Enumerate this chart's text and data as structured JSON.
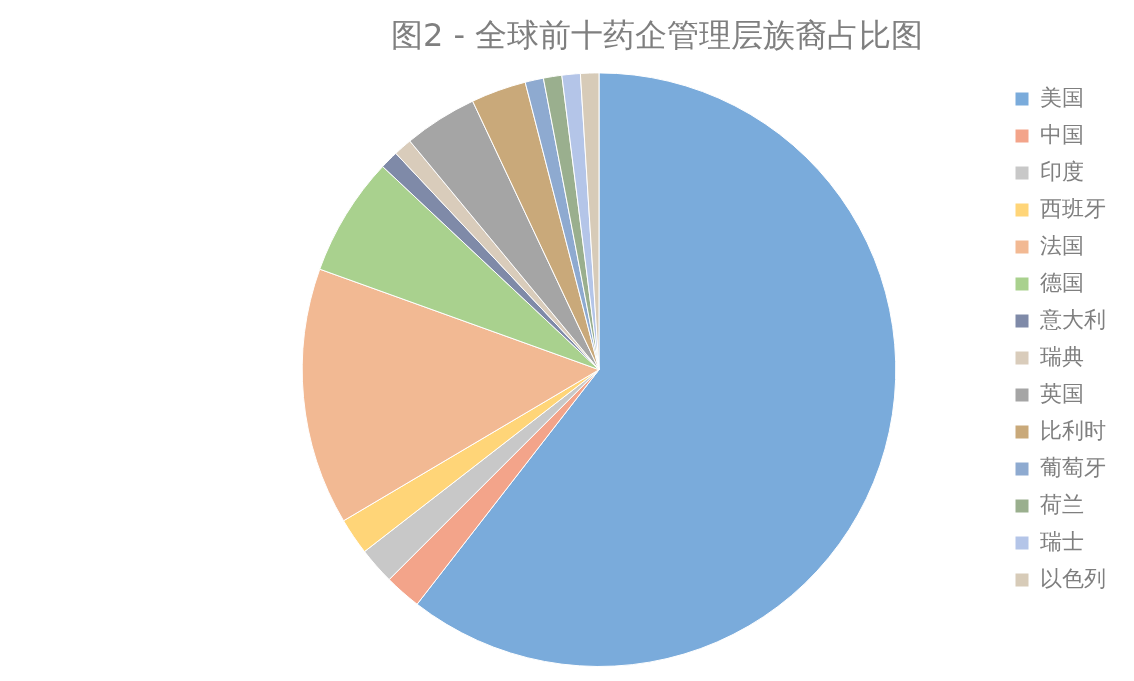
{
  "chart_data": {
    "type": "pie",
    "title": "图2 - 全球前十药企管理层族裔占比图",
    "categories": [
      "美国",
      "中国",
      "印度",
      "西班牙",
      "法国",
      "德国",
      "意大利",
      "瑞典",
      "英国",
      "比利时",
      "葡萄牙",
      "荷兰",
      "瑞士",
      "以色列"
    ],
    "values": [
      60.5,
      2,
      2,
      2,
      14,
      6.5,
      1,
      1,
      4,
      3,
      1,
      1,
      1,
      1
    ],
    "colors": [
      "#7aabdb",
      "#f3a48a",
      "#c8c8c8",
      "#ffd578",
      "#f2b993",
      "#a9d18e",
      "#7f8aa8",
      "#d9ccbb",
      "#a5a5a5",
      "#c9a97a",
      "#8eaad0",
      "#9aaf8e",
      "#b4c5e8",
      "#d7cbb8"
    ],
    "legend": "right"
  }
}
